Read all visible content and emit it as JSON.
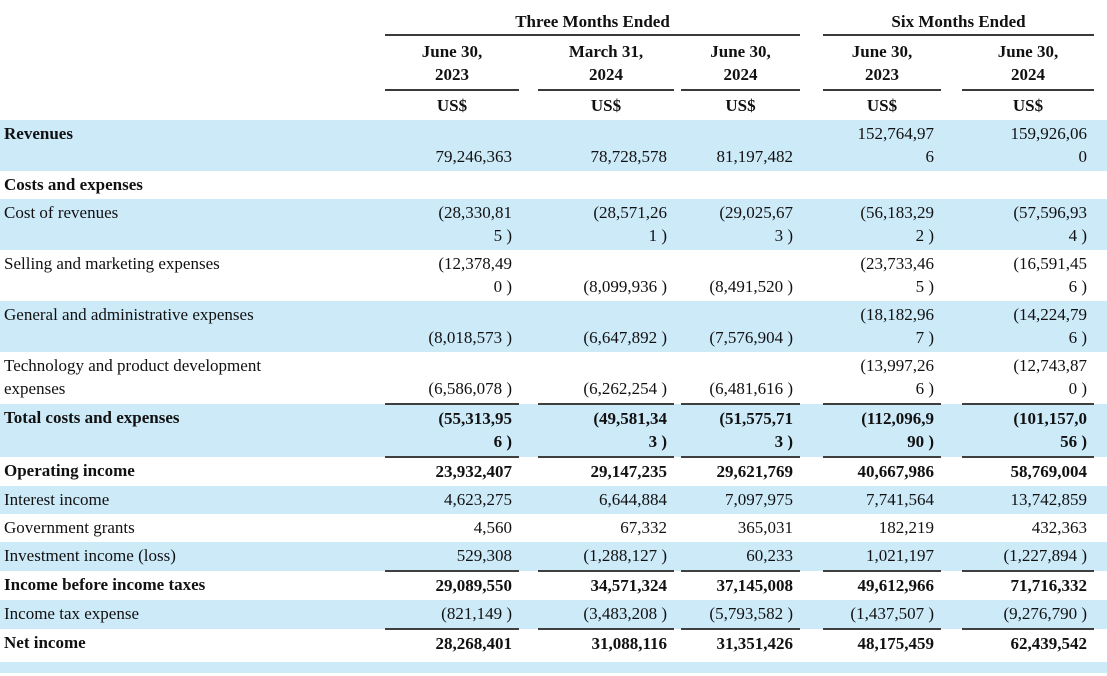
{
  "colors": {
    "row_shade": "#cdeaf9",
    "rule": "#3f3f3f",
    "text": "#111111"
  },
  "table": {
    "groups": [
      {
        "label": "Three Months Ended"
      },
      {
        "label": "Six Months Ended"
      }
    ],
    "columns": [
      {
        "period": "June 30,\n2023",
        "unit": "US$"
      },
      {
        "period": "March 31,\n2024",
        "unit": "US$"
      },
      {
        "period": "June 30,\n2024",
        "unit": "US$"
      },
      {
        "period": "June 30,\n2023",
        "unit": "US$"
      },
      {
        "period": "June 30,\n2024",
        "unit": "US$"
      }
    ],
    "rows": [
      {
        "label": "Revenues",
        "shaded": true,
        "bold_label": true,
        "bold_values": false,
        "rule": false,
        "values": [
          "79,246,363",
          "78,728,578",
          "81,197,482",
          "152,764,97\n6",
          "159,926,06\n0"
        ]
      },
      {
        "label": "Costs and expenses",
        "shaded": false,
        "bold_label": true,
        "bold_values": false,
        "rule": false,
        "values": [
          "",
          "",
          "",
          "",
          ""
        ]
      },
      {
        "label": "Cost of revenues",
        "shaded": true,
        "bold_label": false,
        "bold_values": false,
        "rule": false,
        "values": [
          "(28,330,81\n5 )",
          "(28,571,26\n1 )",
          "(29,025,67\n3 )",
          "(56,183,29\n2 )",
          "(57,596,93\n4 )"
        ]
      },
      {
        "label": "Selling and marketing expenses",
        "shaded": false,
        "bold_label": false,
        "bold_values": false,
        "rule": false,
        "values": [
          "(12,378,49\n0 )",
          "(8,099,936 )",
          "(8,491,520 )",
          "(23,733,46\n5 )",
          "(16,591,45\n6 )"
        ]
      },
      {
        "label": "General and administrative expenses",
        "shaded": true,
        "bold_label": false,
        "bold_values": false,
        "rule": false,
        "values": [
          "(8,018,573 )",
          "(6,647,892 )",
          "(7,576,904 )",
          "(18,182,96\n7 )",
          "(14,224,79\n6 )"
        ]
      },
      {
        "label": "Technology and product development\nexpenses",
        "shaded": false,
        "bold_label": false,
        "bold_values": false,
        "rule": true,
        "values": [
          "(6,586,078 )",
          "(6,262,254 )",
          "(6,481,616 )",
          "(13,997,26\n6 )",
          "(12,743,87\n0 )"
        ]
      },
      {
        "label": "Total costs and expenses",
        "shaded": true,
        "bold_label": true,
        "bold_values": true,
        "rule": true,
        "values": [
          "(55,313,95\n6 )",
          "(49,581,34\n3 )",
          "(51,575,71\n3 )",
          "(112,096,9\n90 )",
          "(101,157,0\n56 )"
        ]
      },
      {
        "label": "Operating income",
        "shaded": false,
        "bold_label": true,
        "bold_values": true,
        "rule": false,
        "values": [
          "23,932,407",
          "29,147,235",
          "29,621,769",
          "40,667,986",
          "58,769,004"
        ]
      },
      {
        "label": "Interest income",
        "shaded": true,
        "bold_label": false,
        "bold_values": false,
        "rule": false,
        "values": [
          "4,623,275",
          "6,644,884",
          "7,097,975",
          "7,741,564",
          "13,742,859"
        ]
      },
      {
        "label": "Government grants",
        "shaded": false,
        "bold_label": false,
        "bold_values": false,
        "rule": false,
        "values": [
          "4,560",
          "67,332",
          "365,031",
          "182,219",
          "432,363"
        ]
      },
      {
        "label": "Investment income (loss)",
        "shaded": true,
        "bold_label": false,
        "bold_values": false,
        "rule": true,
        "values": [
          "529,308",
          "(1,288,127 )",
          "60,233",
          "1,021,197",
          "(1,227,894 )"
        ]
      },
      {
        "label": "Income before income taxes",
        "shaded": false,
        "bold_label": true,
        "bold_values": true,
        "rule": false,
        "values": [
          "29,089,550",
          "34,571,324",
          "37,145,008",
          "49,612,966",
          "71,716,332"
        ]
      },
      {
        "label": "Income tax expense",
        "shaded": true,
        "bold_label": false,
        "bold_values": false,
        "rule": true,
        "values": [
          "(821,149 )",
          "(3,483,208 )",
          "(5,793,582 )",
          "(1,437,507 )",
          "(9,276,790 )"
        ]
      },
      {
        "label": "Net income",
        "shaded": false,
        "bold_label": true,
        "bold_values": true,
        "rule": false,
        "values": [
          "28,268,401",
          "31,088,116",
          "31,351,426",
          "48,175,459",
          "62,439,542"
        ]
      }
    ]
  }
}
